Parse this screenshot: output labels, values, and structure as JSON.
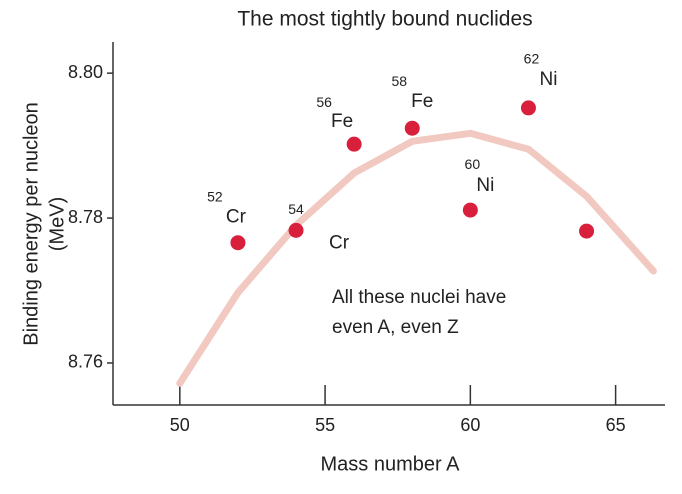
{
  "chart_data": {
    "type": "scatter",
    "title": "The most tightly bound nuclides",
    "x_label": "Mass number A",
    "y_label": [
      "Binding energy per nucleon",
      "(MeV)"
    ],
    "x": [
      52,
      54,
      56,
      58,
      60,
      62,
      64
    ],
    "values": [
      8.7766,
      8.7783,
      8.7902,
      8.7924,
      8.7811,
      8.7952,
      8.7782
    ],
    "symbols": [
      "Cr",
      "Cr",
      "Fe",
      "Fe",
      "Ni",
      "Ni",
      null
    ],
    "color": "#d81f3c",
    "trend": {
      "color": "#f2c9c1",
      "x": [
        50,
        52,
        54,
        56,
        58,
        60,
        62,
        64,
        66.3
      ],
      "values": [
        8.7572,
        8.7697,
        8.779,
        8.7862,
        8.7906,
        8.7917,
        8.7895,
        8.783,
        8.7727
      ]
    },
    "annotation": [
      "All these nuclei have",
      "even A, even Z"
    ],
    "xlim": [
      47.7,
      66.7
    ],
    "ylim": [
      8.7542,
      8.8043
    ],
    "xticks": [
      50,
      55,
      60,
      65
    ],
    "yticks": [
      8.76,
      8.78,
      {
        "value": 8.8,
        "label": "8.80"
      }
    ],
    "title_color": "#c8234a"
  }
}
